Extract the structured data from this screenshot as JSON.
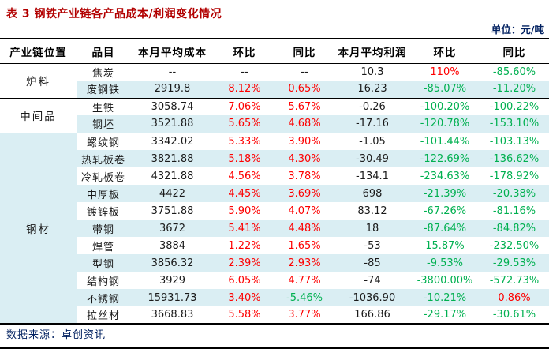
{
  "title": "表 3 钢铁产业链各产品成本/利润变化情况",
  "unit_label": "单位：元/吨",
  "source_label": "数据来源：卓创资讯",
  "colors": {
    "red": "#fe0000",
    "green": "#00b050",
    "dark": "#1a1a1a",
    "stripe": "#daeef3",
    "title": "#b20000",
    "blue_text": "#002060"
  },
  "table": {
    "columns": [
      "产业链位置",
      "品目",
      "本月平均成本",
      "环比",
      "同比",
      "本月平均利润",
      "环比",
      "同比"
    ],
    "groups": [
      {
        "id": "furnace-materials",
        "label": "炉料",
        "highlight": false,
        "rows": [
          {
            "item": "焦炭",
            "cells": [
              {
                "t": "--",
                "c": "d"
              },
              {
                "t": "--",
                "c": "d"
              },
              {
                "t": "--",
                "c": "d"
              },
              {
                "t": "10.3",
                "c": "d"
              },
              {
                "t": "110%",
                "c": "r"
              },
              {
                "t": "-85.60%",
                "c": "g"
              }
            ]
          },
          {
            "item": "废钢铁",
            "cells": [
              {
                "t": "2919.8",
                "c": "d"
              },
              {
                "t": "8.12%",
                "c": "r"
              },
              {
                "t": "0.65%",
                "c": "r"
              },
              {
                "t": "16.23",
                "c": "d"
              },
              {
                "t": "-85.07%",
                "c": "g"
              },
              {
                "t": "-11.20%",
                "c": "g"
              }
            ]
          }
        ]
      },
      {
        "id": "intermediates",
        "label": "中间品",
        "highlight": false,
        "rows": [
          {
            "item": "生铁",
            "cells": [
              {
                "t": "3058.74",
                "c": "d"
              },
              {
                "t": "7.06%",
                "c": "r"
              },
              {
                "t": "5.67%",
                "c": "r"
              },
              {
                "t": "-0.26",
                "c": "d"
              },
              {
                "t": "-100.20%",
                "c": "g"
              },
              {
                "t": "-100.22%",
                "c": "g"
              }
            ]
          },
          {
            "item": "钢坯",
            "cells": [
              {
                "t": "3521.88",
                "c": "d"
              },
              {
                "t": "5.65%",
                "c": "r"
              },
              {
                "t": "4.68%",
                "c": "r"
              },
              {
                "t": "-17.16",
                "c": "d"
              },
              {
                "t": "-120.78%",
                "c": "g"
              },
              {
                "t": "-153.10%",
                "c": "g"
              }
            ]
          }
        ]
      },
      {
        "id": "steel-products",
        "label": "钢材",
        "highlight": true,
        "rows": [
          {
            "item": "螺纹钢",
            "cells": [
              {
                "t": "3342.02",
                "c": "d"
              },
              {
                "t": "5.33%",
                "c": "r"
              },
              {
                "t": "3.90%",
                "c": "r"
              },
              {
                "t": "-1.05",
                "c": "d"
              },
              {
                "t": "-101.44%",
                "c": "g"
              },
              {
                "t": "-103.13%",
                "c": "g"
              }
            ]
          },
          {
            "item": "热轧板卷",
            "cells": [
              {
                "t": "3821.88",
                "c": "d"
              },
              {
                "t": "5.18%",
                "c": "r"
              },
              {
                "t": "4.30%",
                "c": "r"
              },
              {
                "t": "-30.49",
                "c": "d"
              },
              {
                "t": "-122.69%",
                "c": "g"
              },
              {
                "t": "-136.62%",
                "c": "g"
              }
            ]
          },
          {
            "item": "冷轧板卷",
            "cells": [
              {
                "t": "4321.88",
                "c": "d"
              },
              {
                "t": "4.56%",
                "c": "r"
              },
              {
                "t": "3.78%",
                "c": "r"
              },
              {
                "t": "-134.1",
                "c": "d"
              },
              {
                "t": "-234.63%",
                "c": "g"
              },
              {
                "t": "-178.92%",
                "c": "g"
              }
            ]
          },
          {
            "item": "中厚板",
            "cells": [
              {
                "t": "4422",
                "c": "d"
              },
              {
                "t": "4.45%",
                "c": "r"
              },
              {
                "t": "3.69%",
                "c": "r"
              },
              {
                "t": "698",
                "c": "d"
              },
              {
                "t": "-21.39%",
                "c": "g"
              },
              {
                "t": "-20.38%",
                "c": "g"
              }
            ]
          },
          {
            "item": "镀锌板",
            "cells": [
              {
                "t": "3751.88",
                "c": "d"
              },
              {
                "t": "5.90%",
                "c": "r"
              },
              {
                "t": "4.07%",
                "c": "r"
              },
              {
                "t": "83.12",
                "c": "d"
              },
              {
                "t": "-67.26%",
                "c": "g"
              },
              {
                "t": "-81.16%",
                "c": "g"
              }
            ]
          },
          {
            "item": "带钢",
            "cells": [
              {
                "t": "3672",
                "c": "d"
              },
              {
                "t": "5.41%",
                "c": "r"
              },
              {
                "t": "4.48%",
                "c": "r"
              },
              {
                "t": "18",
                "c": "d"
              },
              {
                "t": "-87.64%",
                "c": "g"
              },
              {
                "t": "-84.82%",
                "c": "g"
              }
            ]
          },
          {
            "item": "焊管",
            "cells": [
              {
                "t": "3884",
                "c": "d"
              },
              {
                "t": "1.22%",
                "c": "r"
              },
              {
                "t": "1.65%",
                "c": "r"
              },
              {
                "t": "-53",
                "c": "d"
              },
              {
                "t": "15.87%",
                "c": "g"
              },
              {
                "t": "-232.50%",
                "c": "g"
              }
            ]
          },
          {
            "item": "型钢",
            "cells": [
              {
                "t": "3856.32",
                "c": "d"
              },
              {
                "t": "2.39%",
                "c": "r"
              },
              {
                "t": "2.93%",
                "c": "r"
              },
              {
                "t": "-85",
                "c": "d"
              },
              {
                "t": "-9.53%",
                "c": "g"
              },
              {
                "t": "-29.53%",
                "c": "g"
              }
            ]
          },
          {
            "item": "结构钢",
            "cells": [
              {
                "t": "3929",
                "c": "d"
              },
              {
                "t": "6.05%",
                "c": "r"
              },
              {
                "t": "4.77%",
                "c": "r"
              },
              {
                "t": "-74",
                "c": "d"
              },
              {
                "t": "-3800.00%",
                "c": "g"
              },
              {
                "t": "-572.73%",
                "c": "g"
              }
            ]
          },
          {
            "item": "不锈钢",
            "cells": [
              {
                "t": "15931.73",
                "c": "d"
              },
              {
                "t": "3.40%",
                "c": "r"
              },
              {
                "t": "-5.46%",
                "c": "g"
              },
              {
                "t": "-1036.90",
                "c": "d"
              },
              {
                "t": "-10.21%",
                "c": "g"
              },
              {
                "t": "0.86%",
                "c": "r"
              }
            ]
          },
          {
            "item": "拉丝材",
            "cells": [
              {
                "t": "3668.83",
                "c": "d"
              },
              {
                "t": "5.58%",
                "c": "r"
              },
              {
                "t": "3.77%",
                "c": "r"
              },
              {
                "t": "166.86",
                "c": "d"
              },
              {
                "t": "-29.17%",
                "c": "g"
              },
              {
                "t": "-30.61%",
                "c": "g"
              }
            ]
          }
        ]
      }
    ]
  }
}
